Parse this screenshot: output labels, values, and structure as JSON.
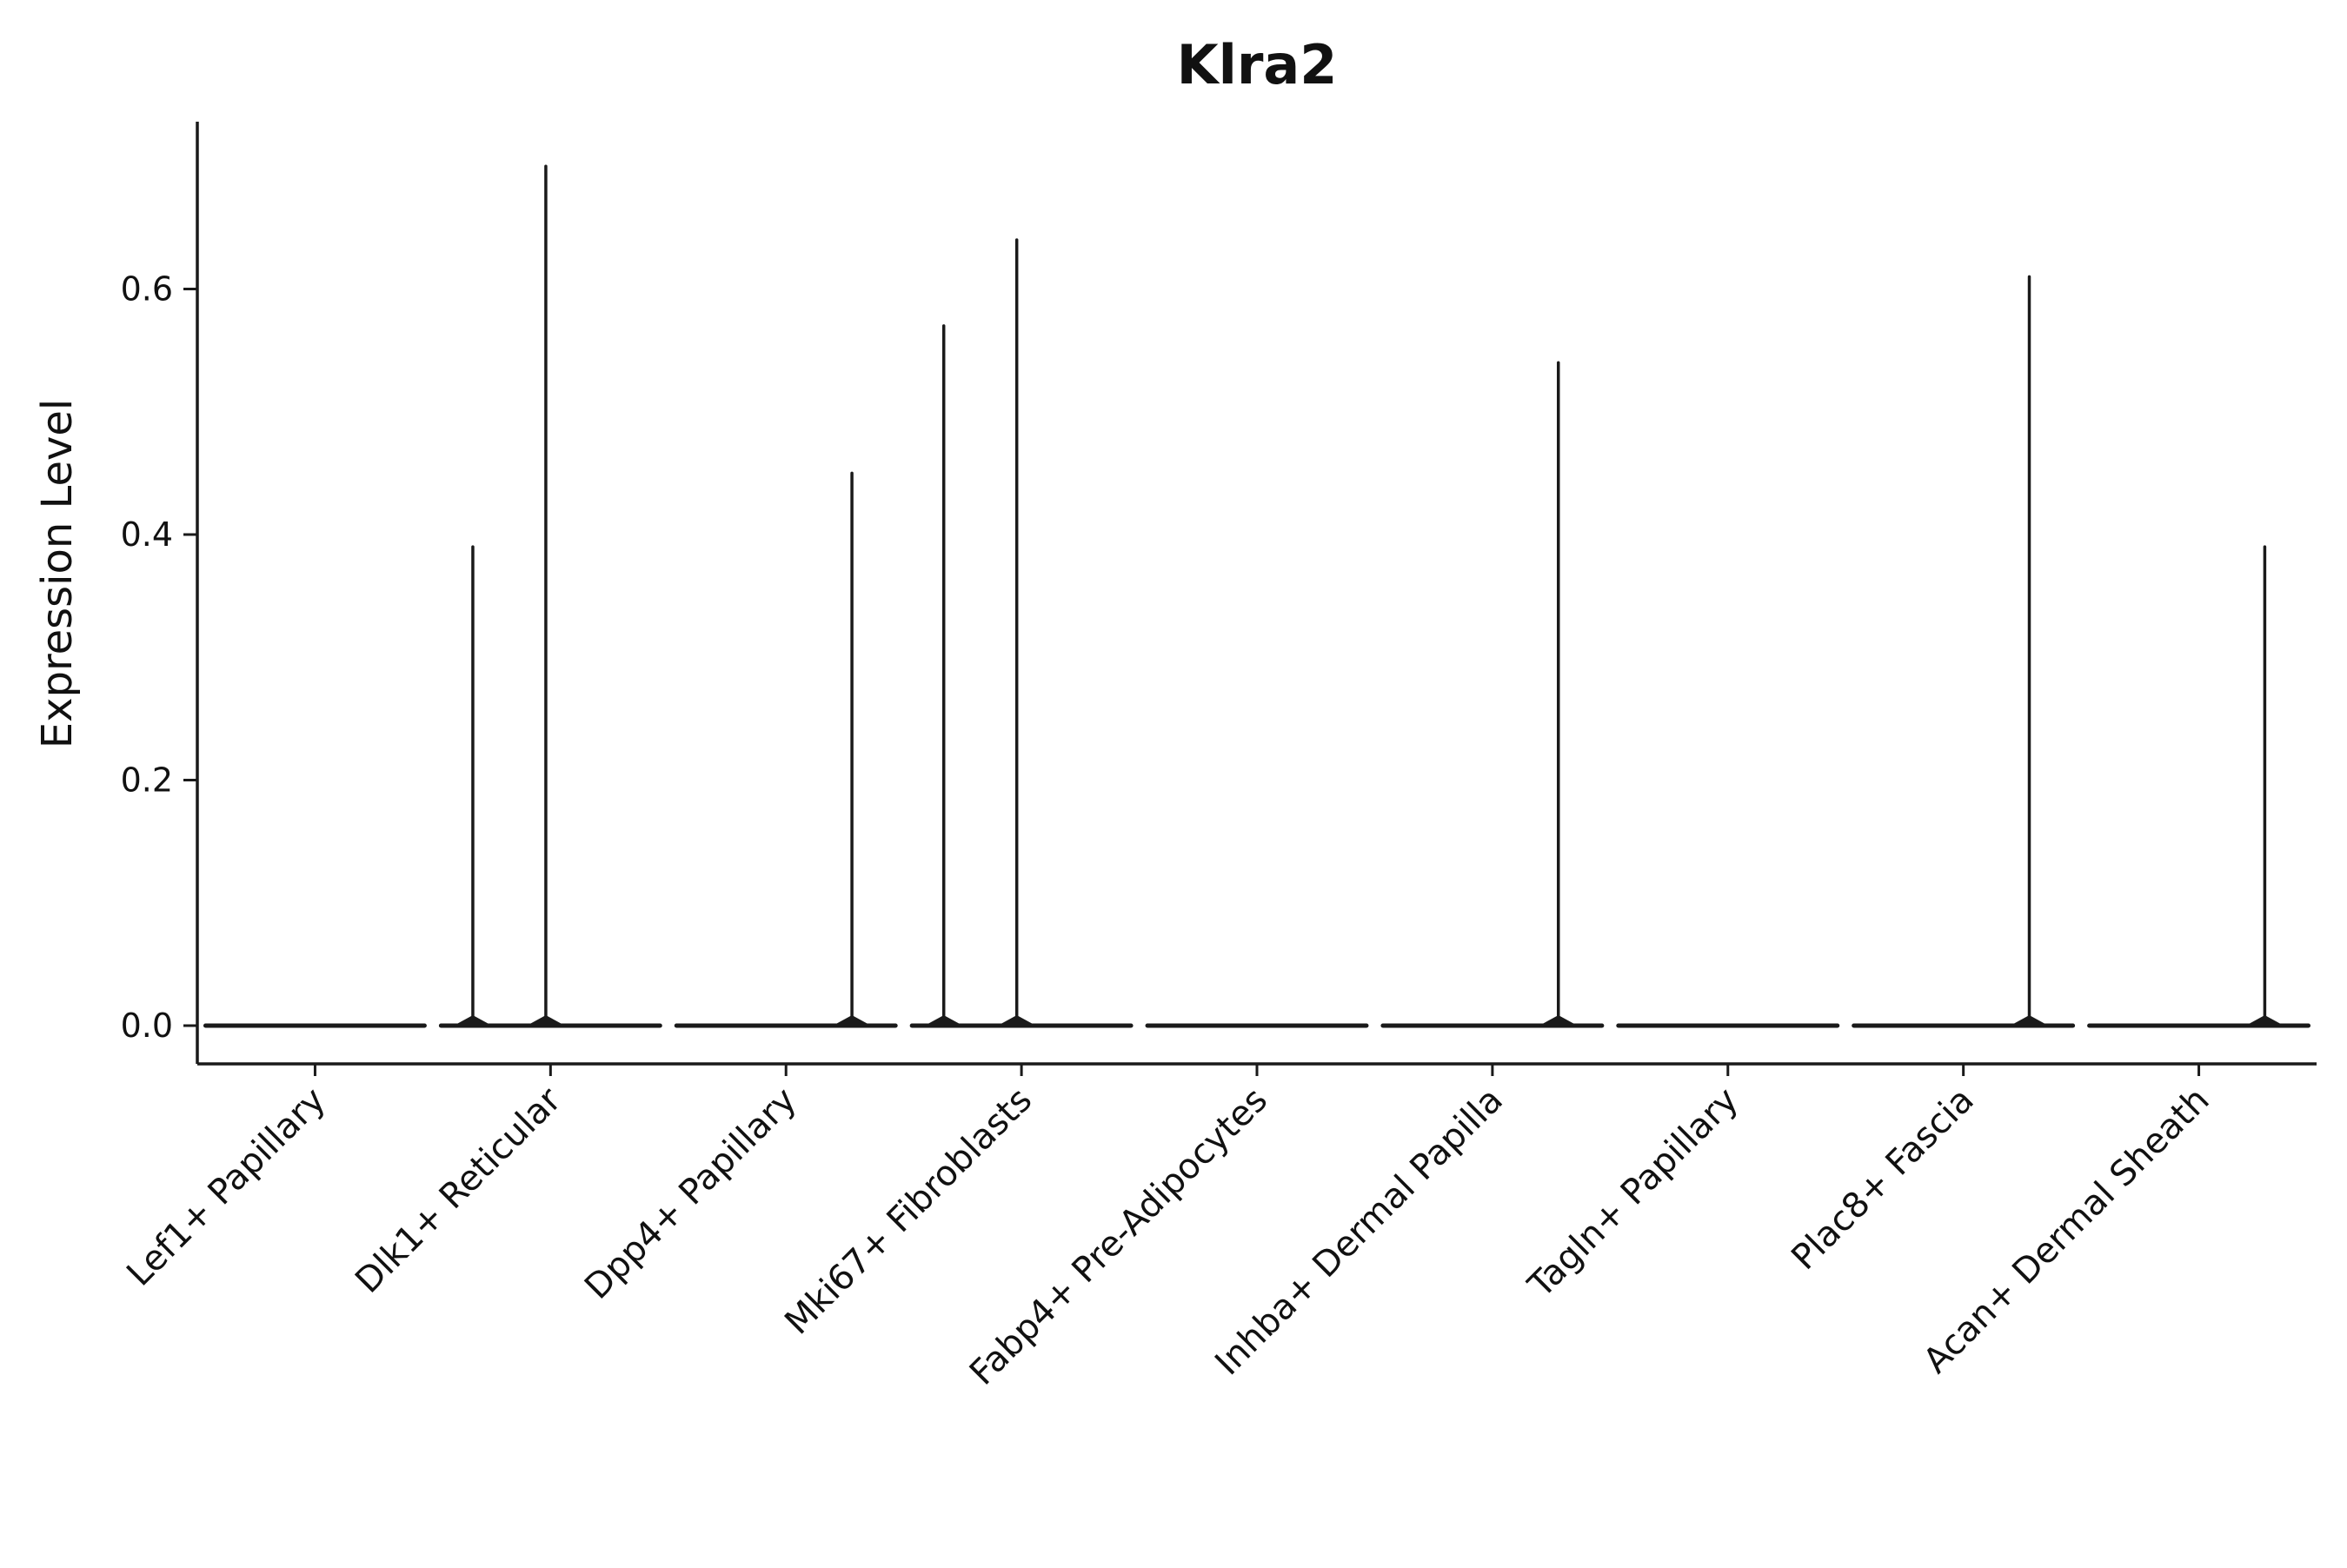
{
  "chart_data": {
    "type": "violin",
    "title": "Klra2",
    "ylabel": "Expression Level",
    "xlabel": "",
    "ylim": [
      0,
      0.736
    ],
    "grid": false,
    "legend": "none",
    "yticks": [
      {
        "label": "0.0",
        "value": 0.0
      },
      {
        "label": "0.2",
        "value": 0.2
      },
      {
        "label": "0.4",
        "value": 0.4
      },
      {
        "label": "0.6",
        "value": 0.6
      }
    ],
    "categories": [
      "Lef1+ Papillary",
      "Dlk1+ Reticular",
      "Dpp4+ Papillary",
      "Mki67+ Fibroblasts",
      "Fabp4+ Pre-Adipocytes",
      "Inhba+ Dermal Papilla",
      "Tagln+ Papillary",
      "Plac8+ Fascia",
      "Acan+ Dermal Sheath"
    ],
    "violins": [
      {
        "category": "Lef1+ Papillary",
        "baseline_value": 0.0,
        "spikes": []
      },
      {
        "category": "Dlk1+ Reticular",
        "baseline_value": 0.0,
        "spikes": [
          {
            "value": 0.39,
            "offset": -0.33
          },
          {
            "value": 0.7,
            "offset": -0.02
          }
        ]
      },
      {
        "category": "Dpp4+ Papillary",
        "baseline_value": 0.0,
        "spikes": [
          {
            "value": 0.45,
            "offset": 0.28
          }
        ]
      },
      {
        "category": "Mki67+ Fibroblasts",
        "baseline_value": 0.0,
        "spikes": [
          {
            "value": 0.57,
            "offset": -0.33
          },
          {
            "value": 0.64,
            "offset": -0.02
          }
        ]
      },
      {
        "category": "Fabp4+ Pre-Adipocytes",
        "baseline_value": 0.0,
        "spikes": []
      },
      {
        "category": "Inhba+ Dermal Papilla",
        "baseline_value": 0.0,
        "spikes": [
          {
            "value": 0.54,
            "offset": 0.28
          }
        ]
      },
      {
        "category": "Tagln+ Papillary",
        "baseline_value": 0.0,
        "spikes": []
      },
      {
        "category": "Plac8+ Fascia",
        "baseline_value": 0.0,
        "spikes": [
          {
            "value": 0.61,
            "offset": 0.28
          }
        ]
      },
      {
        "category": "Acan+ Dermal Sheath",
        "baseline_value": 0.0,
        "spikes": [
          {
            "value": 0.39,
            "offset": 0.28
          }
        ]
      }
    ],
    "colors": {
      "stroke": "#1a1a1a",
      "text": "#111111",
      "background": "#ffffff"
    }
  }
}
